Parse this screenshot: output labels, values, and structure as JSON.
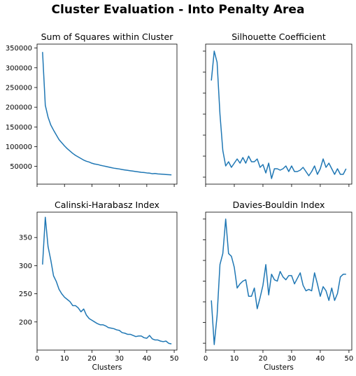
{
  "figure": {
    "title": "Cluster Evaluation - Into Penalty Area"
  },
  "chart_data": [
    {
      "type": "line",
      "title": "Sum of Squares within Cluster",
      "xlabel": "",
      "ylabel": "",
      "xlim": [
        0,
        51
      ],
      "ylim": [
        5000,
        360000
      ],
      "xticks": [
        0,
        10,
        20,
        30,
        40,
        50
      ],
      "yticks": [
        50000,
        100000,
        150000,
        200000,
        250000,
        300000,
        350000
      ],
      "ytick_labels": [
        "50000",
        "100000",
        "150000",
        "200000",
        "250000",
        "300000",
        "350000"
      ],
      "xtick_labels": [],
      "show_ytick_labels": true,
      "show_xtick_labels": false,
      "color": "#1f77b4",
      "grid": false,
      "x": [
        2,
        3,
        4,
        5,
        6,
        7,
        8,
        9,
        10,
        11,
        12,
        13,
        14,
        15,
        16,
        17,
        18,
        19,
        20,
        21,
        22,
        23,
        24,
        25,
        26,
        27,
        28,
        29,
        30,
        31,
        32,
        33,
        34,
        35,
        36,
        37,
        38,
        39,
        40,
        41,
        42,
        43,
        44,
        45,
        46,
        47,
        48,
        49
      ],
      "values": [
        340000,
        205000,
        175000,
        155000,
        142000,
        130000,
        118000,
        110000,
        102000,
        95000,
        89000,
        83000,
        78000,
        74000,
        70000,
        66000,
        63000,
        61000,
        58000,
        56000,
        55000,
        53000,
        51500,
        50000,
        48500,
        47000,
        45500,
        44500,
        43500,
        42000,
        41000,
        40000,
        39000,
        38000,
        37000,
        36000,
        35000,
        34500,
        33500,
        33000,
        31500,
        32000,
        31000,
        30500,
        30000,
        29500,
        29000,
        28500
      ]
    },
    {
      "type": "line",
      "title": "Silhouette Coefficient",
      "xlabel": "",
      "ylabel": "",
      "xlim": [
        0,
        51
      ],
      "ylim": [
        0,
        1
      ],
      "xticks": [
        0,
        10,
        20,
        30,
        40,
        50
      ],
      "yticks": [
        0.05,
        0.2,
        0.35,
        0.5,
        0.65,
        0.8,
        0.95
      ],
      "ytick_labels": [],
      "xtick_labels": [],
      "show_ytick_labels": false,
      "show_xtick_labels": false,
      "color": "#1f77b4",
      "grid": false,
      "x": [
        2,
        3,
        4,
        5,
        6,
        7,
        8,
        9,
        10,
        11,
        12,
        13,
        14,
        15,
        16,
        17,
        18,
        19,
        20,
        21,
        22,
        23,
        24,
        25,
        26,
        27,
        28,
        29,
        30,
        31,
        32,
        33,
        34,
        35,
        36,
        37,
        38,
        39,
        40,
        41,
        42,
        43,
        44,
        45,
        46,
        47,
        48,
        49
      ],
      "values": [
        0.74,
        0.95,
        0.87,
        0.5,
        0.24,
        0.13,
        0.16,
        0.12,
        0.15,
        0.18,
        0.15,
        0.19,
        0.15,
        0.2,
        0.16,
        0.16,
        0.18,
        0.12,
        0.14,
        0.08,
        0.15,
        0.04,
        0.11,
        0.11,
        0.1,
        0.11,
        0.13,
        0.09,
        0.13,
        0.09,
        0.09,
        0.1,
        0.12,
        0.09,
        0.06,
        0.09,
        0.13,
        0.07,
        0.11,
        0.18,
        0.12,
        0.15,
        0.11,
        0.07,
        0.11,
        0.07,
        0.07,
        0.11
      ]
    },
    {
      "type": "line",
      "title": "Calinski-Harabasz Index",
      "xlabel": "Clusters",
      "ylabel": "",
      "xlim": [
        0,
        51
      ],
      "ylim": [
        150,
        395
      ],
      "xticks": [
        0,
        10,
        20,
        30,
        40,
        50
      ],
      "yticks": [
        200,
        250,
        300,
        350
      ],
      "ytick_labels": [
        "200",
        "250",
        "300",
        "350"
      ],
      "xtick_labels": [
        "0",
        "10",
        "20",
        "30",
        "40",
        "50"
      ],
      "show_ytick_labels": true,
      "show_xtick_labels": true,
      "color": "#1f77b4",
      "grid": false,
      "x": [
        2,
        3,
        4,
        5,
        6,
        7,
        8,
        9,
        10,
        11,
        12,
        13,
        14,
        15,
        16,
        17,
        18,
        19,
        20,
        21,
        22,
        23,
        24,
        25,
        26,
        27,
        28,
        29,
        30,
        31,
        32,
        33,
        34,
        35,
        36,
        37,
        38,
        39,
        40,
        41,
        42,
        43,
        44,
        45,
        46,
        47,
        48,
        49
      ],
      "values": [
        302,
        386,
        334,
        310,
        282,
        272,
        258,
        250,
        244,
        240,
        236,
        229,
        229,
        225,
        218,
        223,
        212,
        206,
        203,
        200,
        197,
        195,
        195,
        193,
        190,
        189,
        188,
        186,
        185,
        181,
        180,
        178,
        178,
        176,
        174,
        175,
        175,
        172,
        171,
        176,
        170,
        168,
        168,
        166,
        165,
        166,
        162,
        161
      ]
    },
    {
      "type": "line",
      "title": "Davies-Bouldin Index",
      "xlabel": "Clusters",
      "ylabel": "",
      "xlim": [
        0,
        51
      ],
      "ylim": [
        0,
        1
      ],
      "xticks": [
        0,
        10,
        20,
        30,
        40,
        50
      ],
      "yticks": [
        0.05,
        0.2,
        0.35,
        0.5,
        0.65,
        0.8,
        0.95
      ],
      "ytick_labels": [],
      "xtick_labels": [
        "0",
        "10",
        "20",
        "30",
        "40",
        "50"
      ],
      "show_ytick_labels": false,
      "show_xtick_labels": true,
      "color": "#1f77b4",
      "grid": false,
      "x": [
        2,
        3,
        4,
        5,
        6,
        7,
        8,
        9,
        10,
        11,
        12,
        13,
        14,
        15,
        16,
        17,
        18,
        19,
        20,
        21,
        22,
        23,
        24,
        25,
        26,
        27,
        28,
        29,
        30,
        31,
        32,
        33,
        34,
        35,
        36,
        37,
        38,
        39,
        40,
        41,
        42,
        43,
        44,
        45,
        46,
        47,
        48,
        49
      ],
      "values": [
        0.36,
        0.04,
        0.25,
        0.62,
        0.7,
        0.95,
        0.7,
        0.68,
        0.6,
        0.45,
        0.48,
        0.5,
        0.51,
        0.39,
        0.39,
        0.45,
        0.3,
        0.38,
        0.47,
        0.62,
        0.4,
        0.55,
        0.51,
        0.5,
        0.57,
        0.53,
        0.51,
        0.54,
        0.54,
        0.48,
        0.52,
        0.56,
        0.47,
        0.43,
        0.44,
        0.43,
        0.56,
        0.48,
        0.39,
        0.46,
        0.43,
        0.36,
        0.45,
        0.36,
        0.41,
        0.53,
        0.55,
        0.55
      ]
    }
  ]
}
